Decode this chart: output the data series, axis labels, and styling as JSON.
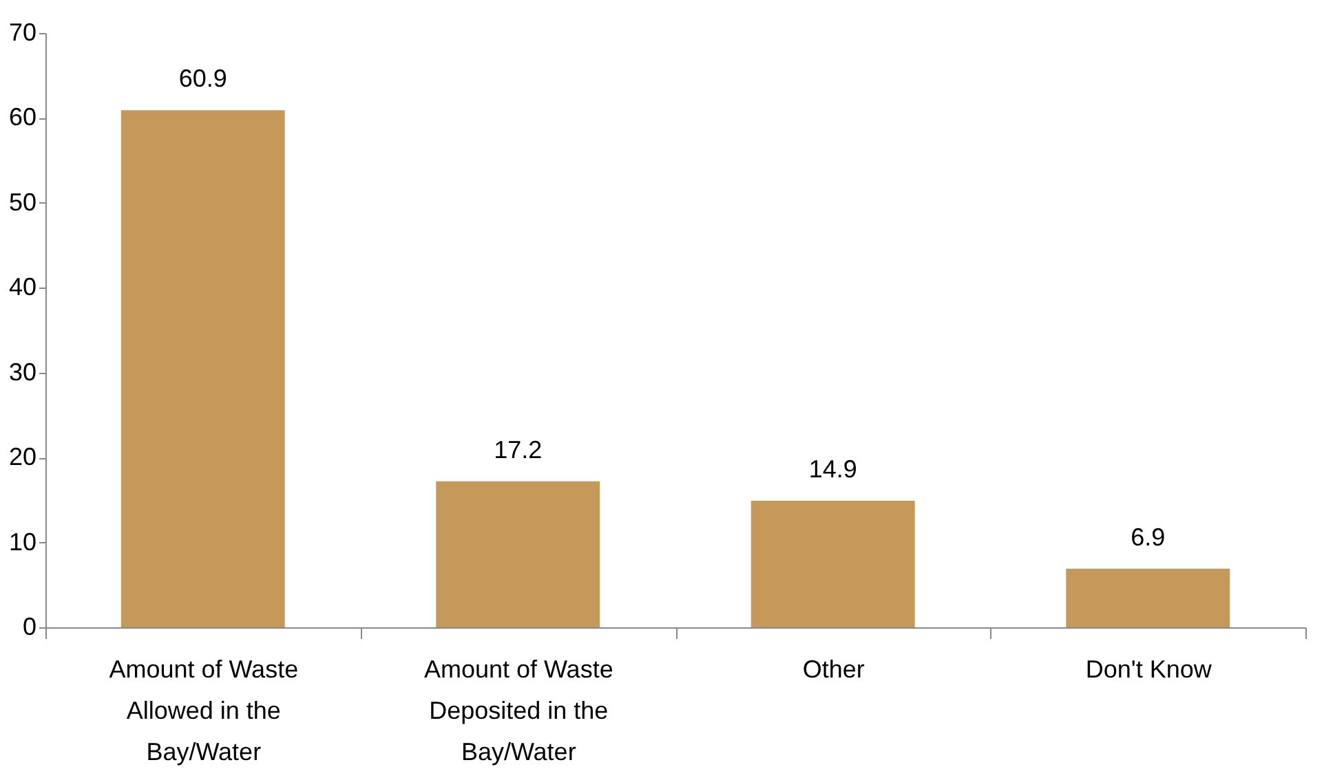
{
  "chart_data": {
    "type": "bar",
    "categories": [
      "Amount of Waste Allowed in the Bay/Water",
      "Amount of Waste Deposited in the Bay/Water",
      "Other",
      "Don't Know"
    ],
    "values": [
      60.9,
      17.2,
      14.9,
      6.9
    ],
    "color": "#c4995a",
    "ylim": [
      0,
      70
    ],
    "yticks": [
      0,
      10,
      20,
      30,
      40,
      50,
      60,
      70
    ],
    "data_labels": true,
    "grid": false
  }
}
